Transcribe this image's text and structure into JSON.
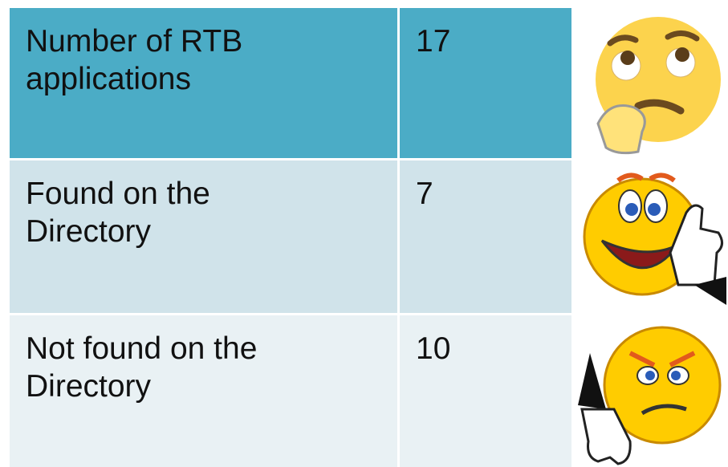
{
  "table": {
    "rows": [
      [
        "Number of RTB applications",
        17
      ],
      [
        "Found on the Directory",
        7
      ],
      [
        "Not found on the Directory",
        10
      ]
    ]
  }
}
